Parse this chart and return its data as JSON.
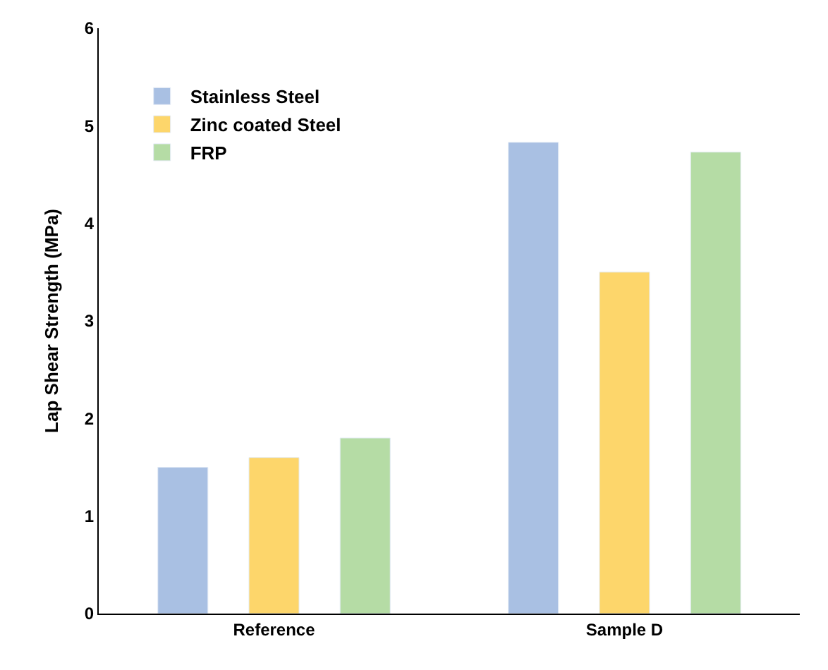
{
  "chart_data": {
    "type": "bar",
    "ylabel": "Lap Shear Strength (MPa)",
    "categories": [
      "Reference",
      "Sample D"
    ],
    "series": [
      {
        "name": "Stainless Steel",
        "color": "#a9c0e3",
        "values": [
          1.5,
          4.83
        ]
      },
      {
        "name": "Zinc coated Steel",
        "color": "#fdd66b",
        "values": [
          1.6,
          3.5
        ]
      },
      {
        "name": "FRP",
        "color": "#b5dca5",
        "values": [
          1.8,
          4.73
        ]
      }
    ],
    "ylim": [
      0,
      6
    ],
    "yticks": [
      0,
      1,
      2,
      3,
      4,
      5,
      6
    ],
    "legend": "top left"
  }
}
